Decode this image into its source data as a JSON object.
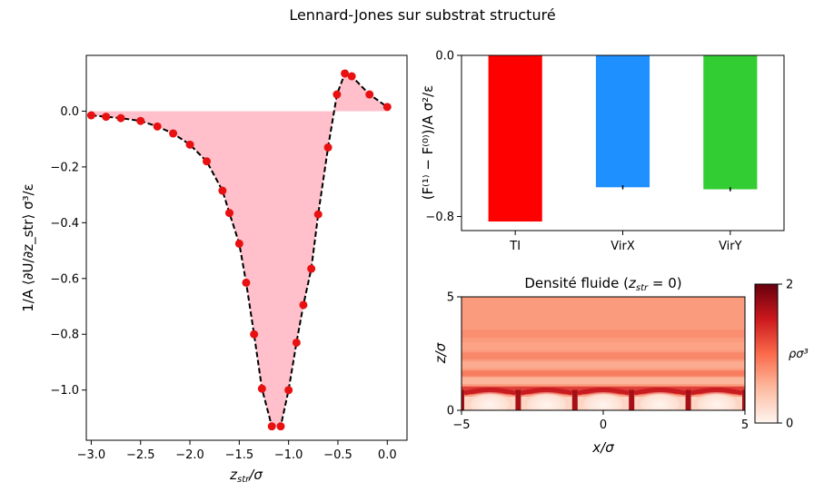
{
  "figure": {
    "suptitle": "Lennard-Jones sur substrat structuré",
    "colors": {
      "fill": "#ffc0cb",
      "marker": "#e81010",
      "curve": "#000000",
      "bar_ti": "#ff0000",
      "bar_virx": "#1e90ff",
      "bar_viry": "#32cd32"
    }
  },
  "chart_data": [
    {
      "type": "line",
      "title": "",
      "xlabel_base": "z",
      "xlabel_sub": "str",
      "xlabel_tail": "/σ",
      "ylabel": "1/A ⟨∂U/∂z_str⟩ σ³/ε",
      "xlim": [
        -3.05,
        0.2
      ],
      "ylim": [
        -1.18,
        0.2
      ],
      "xticks": [
        -3.0,
        -2.5,
        -2.0,
        -1.5,
        -1.0,
        -0.5,
        0.0
      ],
      "xtick_labels": [
        "−3.0",
        "−2.5",
        "−2.0",
        "−1.5",
        "−1.0",
        "−0.5",
        "0.0"
      ],
      "yticks": [
        0.0,
        -0.2,
        -0.4,
        -0.6,
        -0.8,
        -1.0
      ],
      "ytick_labels": [
        "0.0",
        "−0.2",
        "−0.4",
        "−0.6",
        "−0.8",
        "−1.0"
      ],
      "series": [
        {
          "x": [
            -3.0,
            -2.85,
            -2.7,
            -2.5,
            -2.33,
            -2.17,
            -2.0,
            -1.83,
            -1.67,
            -1.6,
            -1.5,
            -1.43,
            -1.35,
            -1.27,
            -1.17,
            -1.08,
            -1.0,
            -0.92,
            -0.85,
            -0.77,
            -0.7,
            -0.6,
            -0.51,
            -0.43,
            -0.36,
            -0.18,
            0.0
          ],
          "y": [
            -0.015,
            -0.02,
            -0.025,
            -0.035,
            -0.055,
            -0.08,
            -0.12,
            -0.18,
            -0.285,
            -0.365,
            -0.475,
            -0.615,
            -0.8,
            -0.995,
            -1.13,
            -1.13,
            -1.0,
            -0.83,
            -0.695,
            -0.565,
            -0.37,
            -0.13,
            0.06,
            0.135,
            0.125,
            0.06,
            0.015
          ]
        }
      ]
    },
    {
      "type": "bar",
      "title": "",
      "ylabel": "(F⁽¹⁾ − F⁽⁰⁾)/A σ²/ε",
      "categories": [
        "TI",
        "VirX",
        "VirY"
      ],
      "values": [
        -0.825,
        -0.655,
        -0.665
      ],
      "errors": [
        0.0,
        0.01,
        0.01
      ],
      "ylim": [
        -0.87,
        0.0
      ],
      "yticks": [
        0.0,
        -0.8
      ],
      "ytick_labels": [
        "0.0",
        "−0.8"
      ]
    },
    {
      "type": "heatmap",
      "title_prefix": "Densité fluide (",
      "title_var": "z",
      "title_sub": "str",
      "title_suffix": " = 0)",
      "xlabel": "x/σ",
      "ylabel": "z/σ",
      "xlim": [
        -5,
        5
      ],
      "ylim": [
        0,
        5
      ],
      "xticks": [
        -5,
        0,
        5
      ],
      "xtick_labels": [
        "−5",
        "0",
        "5"
      ],
      "yticks": [
        0,
        5
      ],
      "ytick_labels": [
        "0",
        "5"
      ],
      "colorbar_label": "ρσ³",
      "colorbar_range": [
        0,
        2
      ],
      "colorbar_ticks": [
        "0",
        "2"
      ]
    }
  ]
}
